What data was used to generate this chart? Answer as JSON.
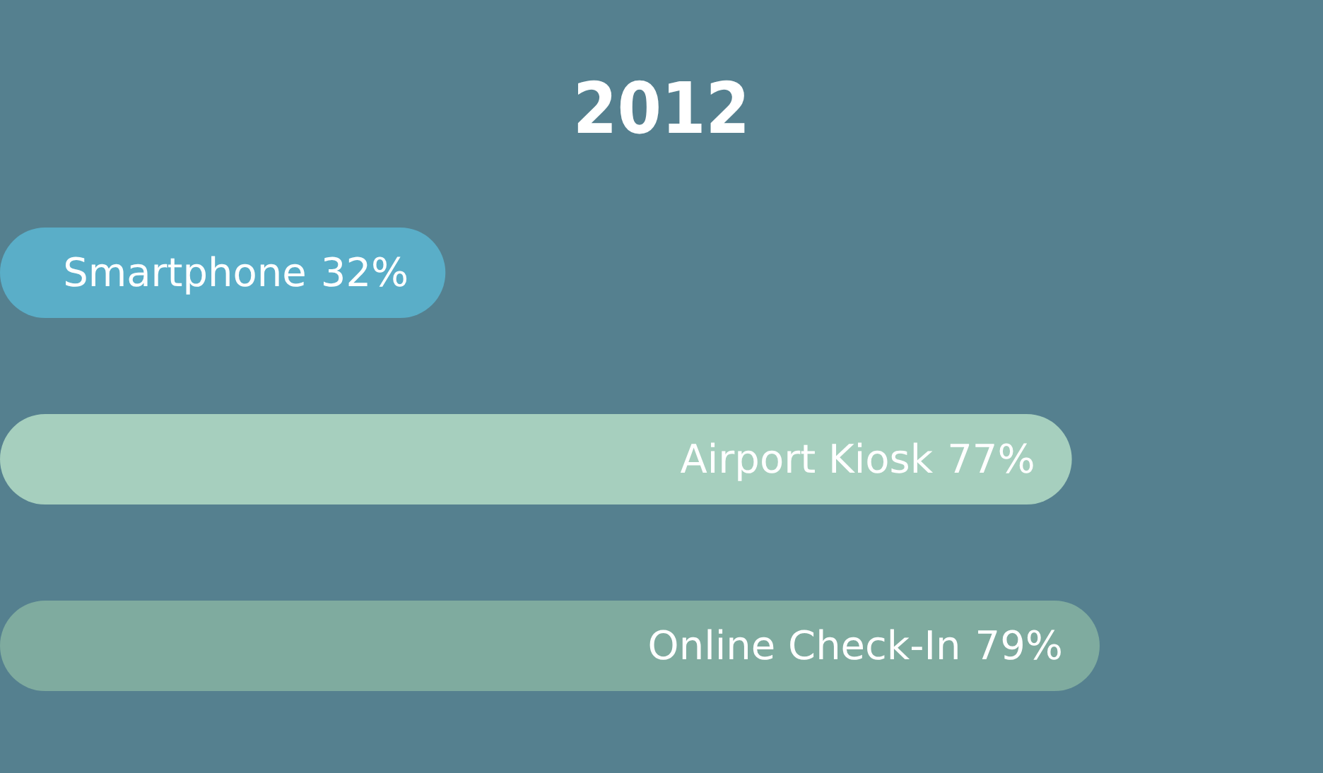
{
  "chart_data": {
    "type": "bar",
    "orientation": "horizontal",
    "title": "2012",
    "categories": [
      "Smartphone",
      "Airport Kiosk",
      "Online Check-In"
    ],
    "values": [
      32,
      77,
      79
    ],
    "value_labels": [
      "32%",
      "77%",
      "79%"
    ],
    "colors": [
      "#5aaec8",
      "#a6cfbe",
      "#7fab9f"
    ]
  }
}
